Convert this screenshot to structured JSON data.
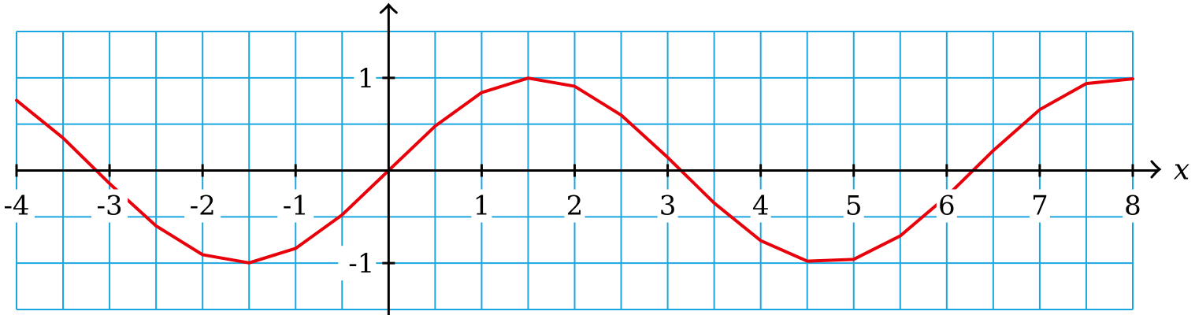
{
  "chart_data": {
    "type": "line",
    "title": "",
    "xlabel": "x",
    "ylabel": "",
    "xlim": [
      -4,
      8
    ],
    "ylim": [
      -1.5,
      1.5
    ],
    "grid": true,
    "grid_step_x": 0.5,
    "grid_step_y": 0.5,
    "x_ticks": [
      -4,
      -3,
      -2,
      -1,
      1,
      2,
      3,
      4,
      5,
      6,
      7,
      8
    ],
    "x_tick_labels": [
      "-4",
      "-3",
      "-2",
      "-1",
      "1",
      "2",
      "3",
      "4",
      "5",
      "6",
      "7",
      "8"
    ],
    "y_ticks": [
      1,
      -1
    ],
    "y_tick_labels": [
      "1",
      "-1"
    ],
    "series": [
      {
        "function": "sin(x)",
        "color": "#e8000b",
        "x": [
          -4.0,
          -3.5,
          -3.0,
          -2.5,
          -2.0,
          -1.5,
          -1.0,
          -0.5,
          0.0,
          0.5,
          1.0,
          1.5,
          2.0,
          2.5,
          3.0,
          3.5,
          4.0,
          4.5,
          5.0,
          5.5,
          6.0,
          6.5,
          7.0,
          7.5,
          8.0
        ],
        "y": [
          0.757,
          0.351,
          -0.141,
          -0.598,
          -0.909,
          -0.997,
          -0.841,
          -0.479,
          0.0,
          0.479,
          0.841,
          0.997,
          0.909,
          0.598,
          0.141,
          -0.351,
          -0.757,
          -0.978,
          -0.959,
          -0.706,
          -0.279,
          0.215,
          0.657,
          0.938,
          0.989
        ]
      }
    ],
    "colors": {
      "grid": "#1aa7e0",
      "axis": "#000000",
      "curve": "#e8000b"
    }
  }
}
